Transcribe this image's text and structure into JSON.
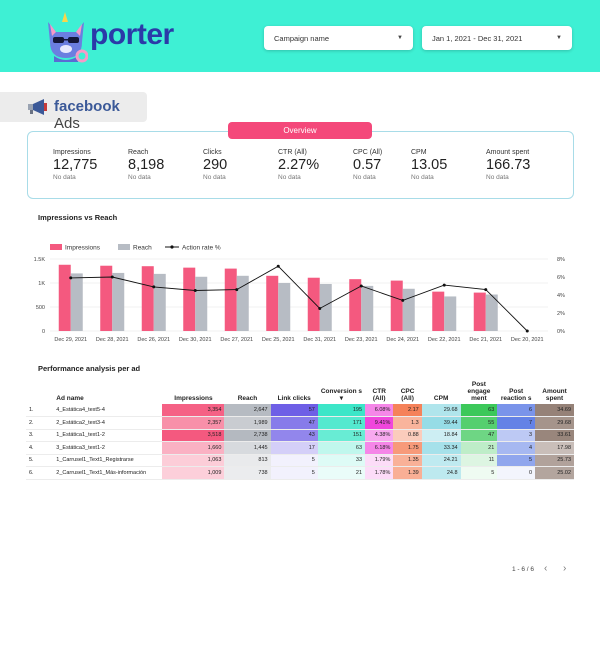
{
  "header": {
    "logo_text": "porter",
    "campaign_dropdown": "Campaign name",
    "date_dropdown": "Jan 1, 2021 - Dec 31, 2021"
  },
  "brand": {
    "name": "facebook",
    "suffix": "Ads"
  },
  "overview": {
    "title": "Overview",
    "metrics": [
      {
        "label": "Impressions",
        "value": "12,775",
        "sub": "No data"
      },
      {
        "label": "Reach",
        "value": "8,198",
        "sub": "No data"
      },
      {
        "label": "Clicks",
        "value": "290",
        "sub": "No data"
      },
      {
        "label": "CTR (All)",
        "value": "2.27%",
        "sub": "No data"
      },
      {
        "label": "CPC (All)",
        "value": "0.57",
        "sub": "No data"
      },
      {
        "label": "CPM",
        "value": "13.05",
        "sub": "No data"
      },
      {
        "label": "Amount spent",
        "value": "166.73",
        "sub": "No data"
      }
    ]
  },
  "chart_title": "Impressions vs Reach",
  "chart_data": {
    "type": "bar",
    "categories": [
      "Dec 29, 2021",
      "Dec 28, 2021",
      "Dec 26, 2021",
      "Dec 30, 2021",
      "Dec 27, 2021",
      "Dec 25, 2021",
      "Dec 31, 2021",
      "Dec 23, 2021",
      "Dec 24, 2021",
      "Dec 22, 2021",
      "Dec 21, 2021",
      "Dec 20, 2021"
    ],
    "series": [
      {
        "name": "Impressions",
        "type": "bar",
        "axis": "left",
        "color": "#f4597f",
        "values": [
          1380,
          1360,
          1350,
          1320,
          1300,
          1150,
          1110,
          1080,
          1050,
          820,
          800,
          0
        ]
      },
      {
        "name": "Reach",
        "type": "bar",
        "axis": "left",
        "color": "#b7bcc4",
        "values": [
          1200,
          1210,
          1190,
          1130,
          1150,
          1000,
          980,
          940,
          880,
          720,
          760,
          0
        ]
      },
      {
        "name": "Action rate %",
        "type": "line",
        "axis": "right",
        "color": "#111111",
        "values": [
          5.9,
          6.0,
          4.9,
          4.5,
          4.6,
          7.2,
          2.5,
          5.0,
          3.4,
          5.1,
          4.6,
          0
        ]
      }
    ],
    "y_left": {
      "ticks": [
        "0",
        "500",
        "1K",
        "1.5K"
      ],
      "range": [
        0,
        1500
      ]
    },
    "y_right": {
      "ticks": [
        "0%",
        "2%",
        "4%",
        "6%",
        "8%"
      ],
      "range": [
        0,
        8
      ]
    },
    "legend_position": "top-left",
    "grid": true
  },
  "table_title": "Performance analysis per ad",
  "table": {
    "headers": [
      "Ad name",
      "Impressions",
      "Reach",
      "Link clicks",
      "Conversions",
      "CTR (All)",
      "CPC (All)",
      "CPM",
      "Post engagement",
      "Post reactions",
      "Amount spent"
    ],
    "header_display": [
      "Ad name",
      "Impressions",
      "Reach",
      "Link clicks",
      "Conversion s ▾",
      "CTR (All)",
      "CPC (All)",
      "CPM",
      "Post engage ment",
      "Post reaction s",
      "Amount spent"
    ],
    "rows": [
      {
        "idx": "1.",
        "name": "4_Estática4_text5-4",
        "impressions": "3,354",
        "reach": "2,647",
        "link_clicks": "57",
        "conversions": "195",
        "ctr": "6.08%",
        "cpc": "2.17",
        "cpm": "29.68",
        "engagement": "63",
        "reactions": "6",
        "spent": "34.69"
      },
      {
        "idx": "2.",
        "name": "2_Estática2_text3-4",
        "impressions": "2,357",
        "reach": "1,989",
        "link_clicks": "47",
        "conversions": "171",
        "ctr": "9.41%",
        "cpc": "1.3",
        "cpm": "39.44",
        "engagement": "55",
        "reactions": "7",
        "spent": "29.68"
      },
      {
        "idx": "3.",
        "name": "1_Estática1_text1-2",
        "impressions": "3,518",
        "reach": "2,738",
        "link_clicks": "43",
        "conversions": "151",
        "ctr": "4.38%",
        "cpc": "0.88",
        "cpm": "18.84",
        "engagement": "47",
        "reactions": "3",
        "spent": "33.61"
      },
      {
        "idx": "4.",
        "name": "3_Estática3_text1-2",
        "impressions": "1,660",
        "reach": "1,445",
        "link_clicks": "17",
        "conversions": "63",
        "ctr": "6.18%",
        "cpc": "1.75",
        "cpm": "33.34",
        "engagement": "21",
        "reactions": "4",
        "spent": "17.98"
      },
      {
        "idx": "5.",
        "name": "1_Carrusel1_Text1_Registrarse",
        "impressions": "1,063",
        "reach": "813",
        "link_clicks": "5",
        "conversions": "33",
        "ctr": "1.79%",
        "cpc": "1.35",
        "cpm": "24.21",
        "engagement": "11",
        "reactions": "5",
        "spent": "25.73"
      },
      {
        "idx": "6.",
        "name": "2_Carrusel1_Text1_Más-información",
        "impressions": "1,009",
        "reach": "738",
        "link_clicks": "5",
        "conversions": "21",
        "ctr": "1.78%",
        "cpc": "1.39",
        "cpm": "24.8",
        "engagement": "5",
        "reactions": "0",
        "spent": "25.02"
      }
    ]
  },
  "pagination": {
    "label": "1 - 6 / 6"
  },
  "colors": {
    "header_bg": "#3ef0d4",
    "accent_pink": "#f4487a",
    "brand_blue": "#2b3aa8",
    "facebook_blue": "#3b5998"
  }
}
